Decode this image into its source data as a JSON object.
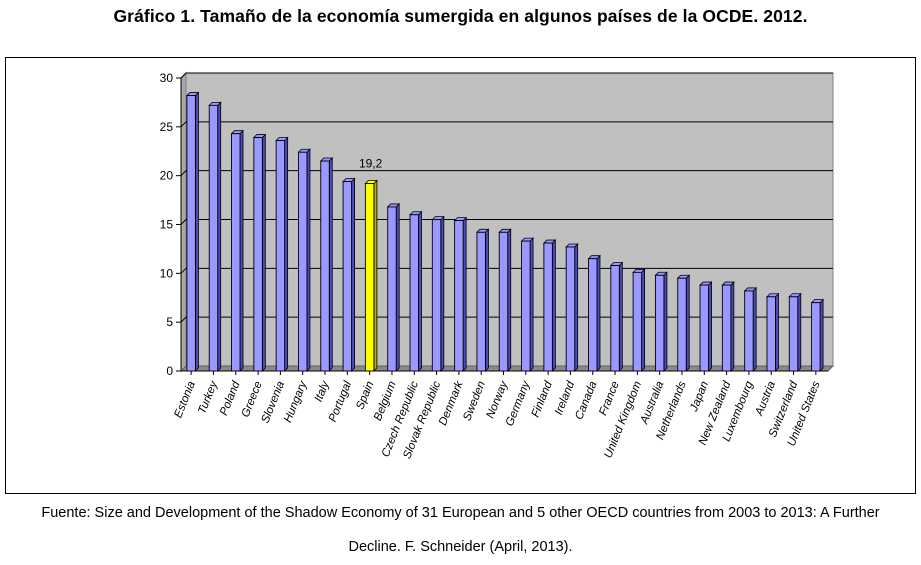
{
  "title": "Gráfico 1. Tamaño de la economía sumergida en algunos países de la OCDE. 2012.",
  "source_line1": "Fuente: Size and Development of the Shadow Economy of 31 European and 5 other OECD countries from 2003 to 2013: A Further",
  "source_line2": "Decline. F. Schneider (April, 2013).",
  "colors": {
    "bar": "#9999ff",
    "bar_side": "#4b4bb8",
    "highlight": "#ffff00",
    "highlight_side": "#b3b300",
    "plot_bg": "#c0c0c0",
    "grid": "#000000"
  },
  "chart_data": {
    "type": "bar",
    "title": "Tamaño de la economía sumergida en algunos países de la OCDE. 2012.",
    "xlabel": "",
    "ylabel": "",
    "ylim": [
      0,
      30
    ],
    "yticks": [
      0,
      5,
      10,
      15,
      20,
      25,
      30
    ],
    "grid": true,
    "categories": [
      "Estonia",
      "Turkey",
      "Poland",
      "Greece",
      "Slovenia",
      "Hungary",
      "Italy",
      "Portugal",
      "Spain",
      "Belgium",
      "Czech Republic",
      "Slovak Republic",
      "Denmark",
      "Sweden",
      "Norway",
      "Germany",
      "Finland",
      "Ireland",
      "Canada",
      "France",
      "United Kingdom",
      "Australia",
      "Netherlands",
      "Japan",
      "New Zealand",
      "Luxembourg",
      "Austria",
      "Switzerland",
      "United States"
    ],
    "values": [
      28.2,
      27.2,
      24.3,
      23.9,
      23.6,
      22.4,
      21.5,
      19.4,
      19.2,
      16.8,
      16.0,
      15.5,
      15.4,
      14.2,
      14.2,
      13.3,
      13.1,
      12.7,
      11.5,
      10.8,
      10.1,
      9.8,
      9.5,
      8.8,
      8.8,
      8.2,
      7.6,
      7.6,
      7.0
    ],
    "highlight": "Spain",
    "annotations": [
      {
        "category": "Spain",
        "text": "19,2"
      }
    ]
  }
}
